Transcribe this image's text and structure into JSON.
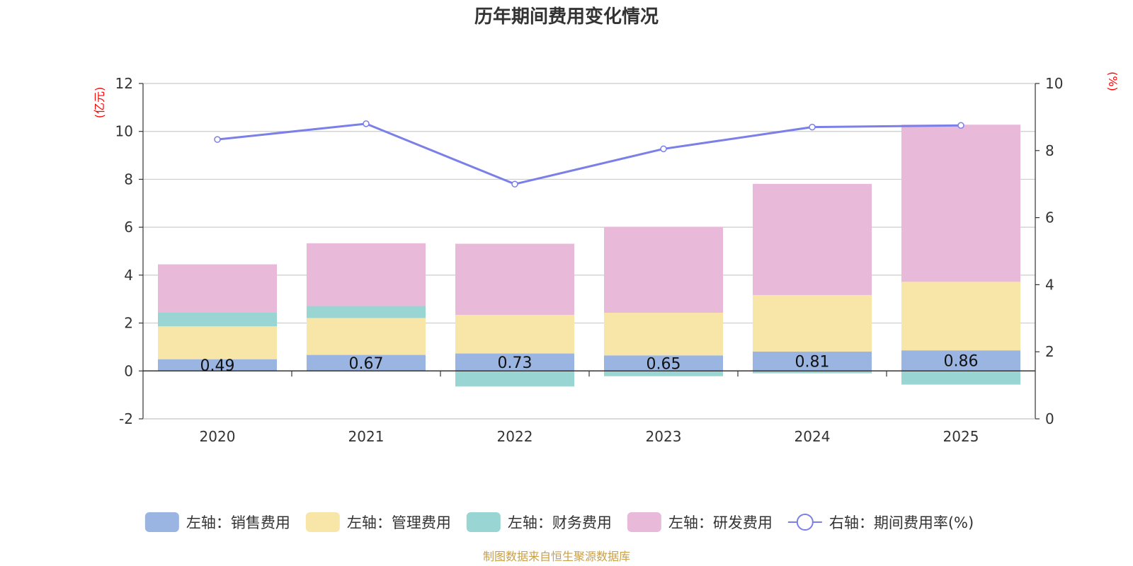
{
  "chart_data": {
    "type": "bar",
    "title": "历年期间费用变化情况",
    "categories": [
      "2020",
      "2021",
      "2022",
      "2023",
      "2024",
      "2025"
    ],
    "left_axis": {
      "unit": "(亿元)",
      "ylim": [
        -2,
        12
      ],
      "ticks": [
        -2,
        0,
        2,
        4,
        6,
        8,
        10,
        12
      ]
    },
    "right_axis": {
      "unit": "(%)",
      "ylim": [
        0,
        10
      ],
      "ticks": [
        0,
        2,
        4,
        6,
        8,
        10
      ]
    },
    "series": [
      {
        "name": "左轴：销售费用",
        "axis": "left",
        "kind": "bar",
        "color": "#9bb5e2",
        "values": [
          0.49,
          0.67,
          0.73,
          0.65,
          0.81,
          0.86
        ],
        "labels": [
          "0.49",
          "0.67",
          "0.73",
          "0.65",
          "0.81",
          "0.86"
        ]
      },
      {
        "name": "左轴：管理费用",
        "axis": "left",
        "kind": "bar",
        "color": "#f8e6a8",
        "values": [
          1.37,
          1.54,
          1.61,
          1.78,
          2.36,
          2.86
        ]
      },
      {
        "name": "左轴：财务费用",
        "axis": "left",
        "kind": "bar",
        "color": "#98d5d3",
        "values": [
          0.57,
          0.5,
          -0.65,
          -0.22,
          -0.1,
          -0.57
        ]
      },
      {
        "name": "左轴：研发费用",
        "axis": "left",
        "kind": "bar",
        "color": "#e8b9d9",
        "values": [
          2.02,
          2.62,
          2.97,
          3.59,
          4.64,
          6.56
        ]
      },
      {
        "name": "右轴：期间费用率(%)",
        "axis": "right",
        "kind": "line",
        "color": "#7b7fe8",
        "values": [
          8.33,
          8.8,
          7.0,
          8.05,
          8.7,
          8.75
        ]
      }
    ],
    "source": "制图数据来自恒生聚源数据库"
  }
}
